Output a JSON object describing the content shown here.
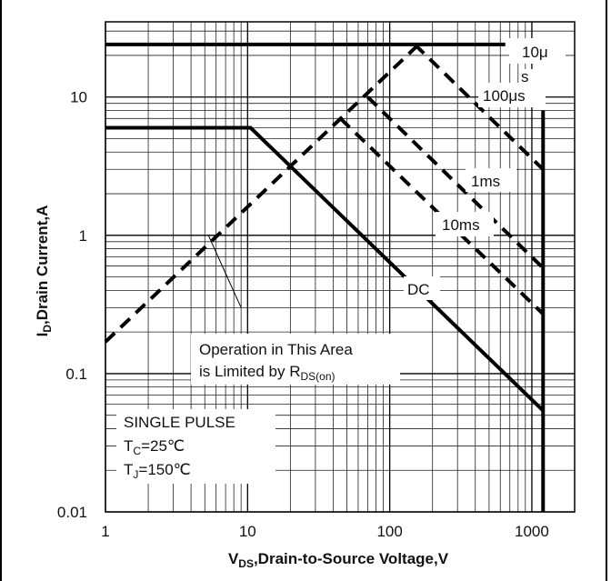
{
  "chart_data": {
    "type": "line",
    "xscale": "log",
    "yscale": "log",
    "xlim": [
      1,
      2000
    ],
    "ylim": [
      0.01,
      35
    ],
    "grid": true,
    "xticks": [
      {
        "value": 1,
        "label": "1"
      },
      {
        "value": 10,
        "label": "10"
      },
      {
        "value": 100,
        "label": "100"
      },
      {
        "value": 1000,
        "label": "1000"
      }
    ],
    "yticks": [
      {
        "value": 10,
        "label": "10"
      },
      {
        "value": 1,
        "label": "1"
      },
      {
        "value": 0.1,
        "label": "0.1"
      },
      {
        "value": 0.01,
        "label": "0.01"
      }
    ],
    "ylabel": {
      "main": "I",
      "sub": "D",
      "rest": ",Drain Current,A"
    },
    "xlabel": {
      "main": "V",
      "sub": "DS",
      "rest": ",Drain-to-Source Voltage,V"
    },
    "series": [
      {
        "name": "10μ",
        "style": "solid",
        "x": [
          1,
          650
        ],
        "y": [
          24,
          24
        ]
      },
      {
        "name": "100μs",
        "style": "dashed",
        "x": [
          150,
          1200
        ],
        "y": [
          24,
          3
        ]
      },
      {
        "name": "1ms",
        "style": "dashed",
        "x": [
          70,
          1200
        ],
        "y": [
          10,
          0.58
        ]
      },
      {
        "name": "10ms",
        "style": "dashed",
        "x": [
          45,
          1200
        ],
        "y": [
          7,
          0.27
        ]
      },
      {
        "name": "DC",
        "style": "solid",
        "x": [
          1,
          10.5,
          1200
        ],
        "y": [
          6,
          6,
          0.054
        ]
      },
      {
        "name": "",
        "style": "solid",
        "x": [
          1200,
          1200
        ],
        "y": [
          8,
          0.01
        ]
      }
    ],
    "rds_limit": {
      "style": "dashed",
      "x": [
        1,
        160
      ],
      "y": [
        0.17,
        24
      ]
    },
    "annotation": {
      "line1": "Operation in This Area",
      "line2_main": "is Limited by R",
      "line2_sub": "DS(on)",
      "pointer": {
        "from": [
          9,
          0.3
        ],
        "to": [
          5.3,
          1
        ]
      }
    },
    "conditions": {
      "title": "SINGLE PULSE",
      "tc_main": "T",
      "tc_sub": "C",
      "tc_rest": "=25℃",
      "tj_main": "T",
      "tj_sub": "J",
      "tj_rest": "=150℃"
    },
    "curve_labels": {
      "ten_us": "10μ",
      "ten_us_frag": "s",
      "hundred_us": "100μs",
      "one_ms": "1ms",
      "ten_ms": "10ms",
      "dc": "DC"
    }
  }
}
